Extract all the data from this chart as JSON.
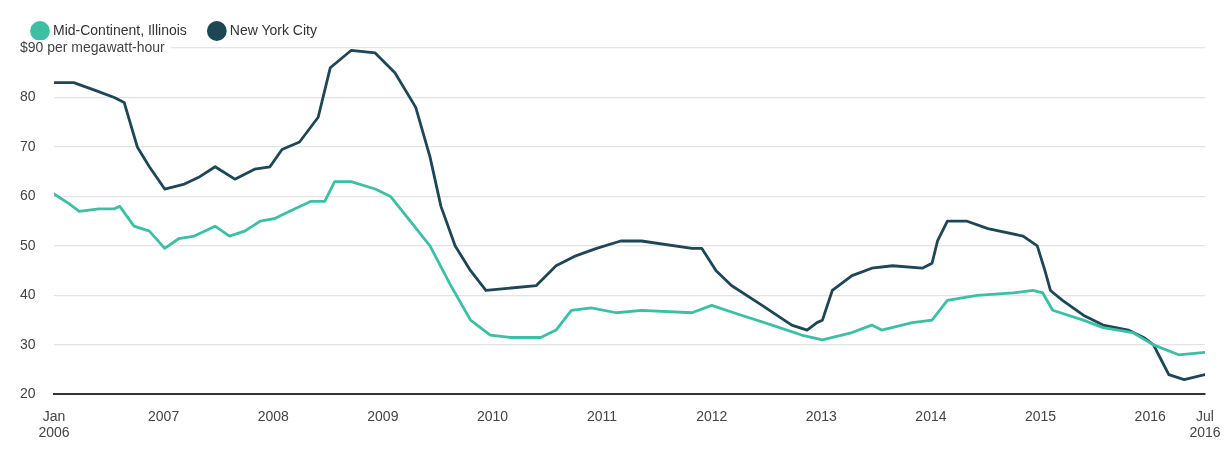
{
  "chart_data": {
    "type": "line",
    "legend": "top left",
    "grid": "y",
    "marker": "none",
    "line_style": "solid",
    "xlim": [
      2006,
      2016.5
    ],
    "xticks": [
      {
        "value": 2006,
        "label": "Jan 2006"
      },
      2007,
      2008,
      2009,
      2010,
      2011,
      2012,
      2013,
      2014,
      2015,
      2016,
      {
        "value": 2016.5,
        "label": "Jul 2016"
      }
    ],
    "ylim": [
      20,
      90
    ],
    "yticks": [
      20,
      30,
      40,
      50,
      60,
      70,
      80,
      {
        "value": 90,
        "label": "$90 per megawatt-hour"
      }
    ],
    "series": [
      {
        "name": "Mid-Continent, Illinois",
        "color": "#3dbfa5",
        "x": [
          2006.0,
          2006.14,
          2006.23,
          2006.41,
          2006.55,
          2006.6,
          2006.73,
          2006.87,
          2007.01,
          2007.14,
          2007.28,
          2007.47,
          2007.6,
          2007.74,
          2007.88,
          2008.01,
          2008.15,
          2008.34,
          2008.47,
          2008.56,
          2008.71,
          2008.93,
          2009.07,
          2009.25,
          2009.43,
          2009.62,
          2009.8,
          2009.98,
          2010.17,
          2010.44,
          2010.58,
          2010.72,
          2010.9,
          2011.13,
          2011.36,
          2011.82,
          2012.0,
          2012.27,
          2012.55,
          2012.82,
          2013.01,
          2013.28,
          2013.46,
          2013.55,
          2013.83,
          2014.01,
          2014.15,
          2014.42,
          2014.75,
          2014.93,
          2015.02,
          2015.11,
          2015.39,
          2015.57,
          2015.84,
          2016.03,
          2016.26,
          2016.5
        ],
        "values": [
          60.5,
          58.5,
          57,
          57.5,
          57.5,
          58,
          54,
          53,
          49.5,
          51.5,
          52,
          54,
          52,
          53,
          55,
          55.5,
          57,
          59,
          59,
          63,
          63,
          61.5,
          60,
          55,
          50,
          42,
          35,
          32,
          31.5,
          31.5,
          33,
          37,
          37.5,
          36.5,
          37,
          36.5,
          38,
          36,
          34,
          32,
          31,
          32.5,
          34,
          33,
          34.5,
          35,
          39,
          40,
          40.5,
          41,
          40.5,
          37,
          35,
          33.5,
          32.5,
          30,
          28,
          28.5
        ]
      },
      {
        "name": "New York City",
        "color": "#1d4656",
        "x": [
          2006.0,
          2006.18,
          2006.37,
          2006.55,
          2006.64,
          2006.76,
          2006.87,
          2007.01,
          2007.19,
          2007.33,
          2007.47,
          2007.65,
          2007.83,
          2007.97,
          2008.08,
          2008.24,
          2008.41,
          2008.52,
          2008.71,
          2008.93,
          2009.11,
          2009.3,
          2009.43,
          2009.53,
          2009.66,
          2009.8,
          2009.94,
          2010.17,
          2010.4,
          2010.58,
          2010.76,
          2010.95,
          2011.17,
          2011.36,
          2011.82,
          2011.91,
          2012.04,
          2012.18,
          2012.46,
          2012.73,
          2012.87,
          2012.96,
          2013.01,
          2013.1,
          2013.28,
          2013.46,
          2013.65,
          2013.92,
          2014.01,
          2014.06,
          2014.15,
          2014.33,
          2014.52,
          2014.84,
          2014.97,
          2015.04,
          2015.09,
          2015.2,
          2015.39,
          2015.57,
          2015.8,
          2015.94,
          2016.03,
          2016.1,
          2016.17,
          2016.31,
          2016.5
        ],
        "values": [
          83,
          83,
          81.5,
          80,
          79,
          70,
          66,
          61.5,
          62.5,
          64,
          66,
          63.5,
          65.5,
          66,
          69.5,
          71,
          76,
          86,
          89.5,
          89,
          85,
          78,
          68,
          58,
          50,
          45,
          41,
          41.5,
          42,
          46,
          48,
          49.5,
          51,
          51,
          49.5,
          49.5,
          45,
          42,
          38,
          34,
          33,
          34.5,
          35,
          41,
          44,
          45.5,
          46,
          45.5,
          46.5,
          51,
          55,
          55,
          53.5,
          52,
          50,
          45,
          41,
          39,
          36,
          34,
          33,
          31.5,
          30,
          27,
          24,
          23,
          24
        ]
      }
    ]
  }
}
